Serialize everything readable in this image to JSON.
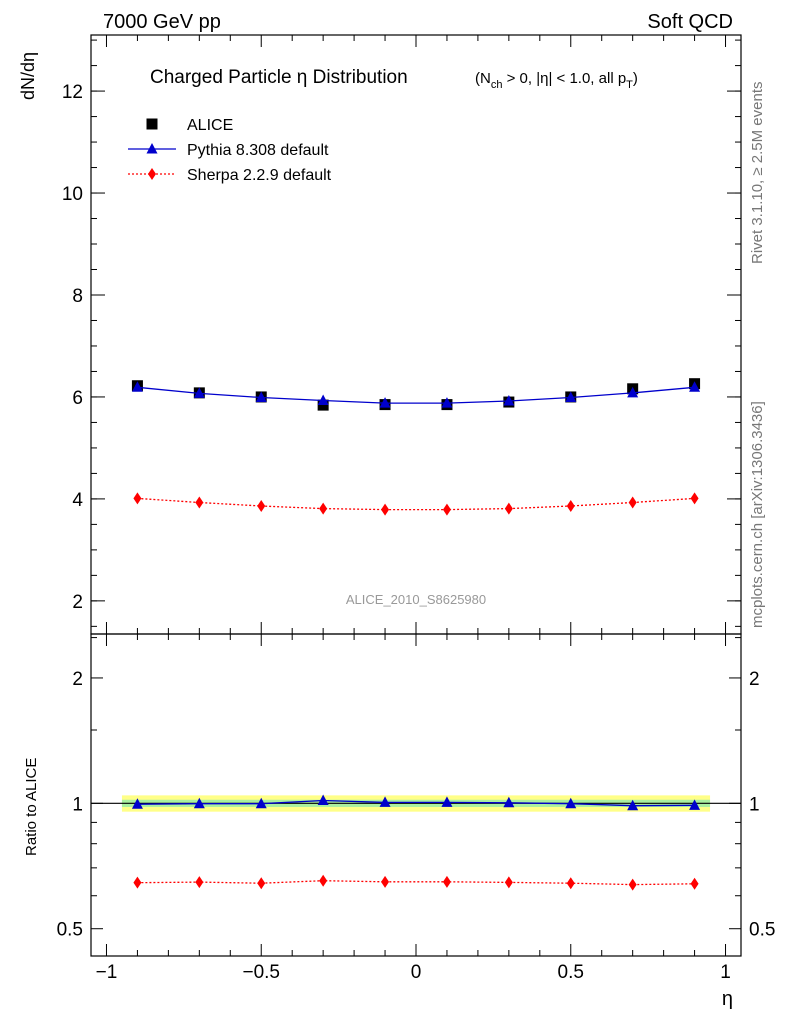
{
  "header": {
    "left": "7000 GeV pp",
    "right": "Soft QCD"
  },
  "side_labels": {
    "rivet": "Rivet 3.1.10, ≥ 2.5M events",
    "mcplots": "mcplots.cern.ch [arXiv:1306.3436]"
  },
  "chart_data": [
    {
      "type": "scatter",
      "title_main": "Charged Particle η Distribution",
      "title_sub": "(N_ch > 0, |η| < 1.0, all p_T)",
      "ylabel": "dN/dη",
      "xlabel": "",
      "watermark": "ALICE_2010_S8625980",
      "xlim": [
        -1.05,
        1.05
      ],
      "ylim": [
        1.35,
        13.1
      ],
      "grid": false,
      "legend_position": "top-left",
      "y_ticks": [
        2,
        4,
        6,
        8,
        10,
        12
      ],
      "x": [
        -0.9,
        -0.7,
        -0.5,
        -0.3,
        -0.1,
        0.1,
        0.3,
        0.5,
        0.7,
        0.9
      ],
      "series": [
        {
          "name": "ALICE",
          "marker": "square",
          "color": "#000000",
          "values": [
            6.22,
            6.08,
            6.0,
            5.84,
            5.85,
            5.85,
            5.9,
            6.0,
            6.16,
            6.26
          ]
        },
        {
          "name": "Pythia 8.308 default",
          "marker": "triangle",
          "color": "#0000cc",
          "line": "solid",
          "values": [
            6.19,
            6.07,
            5.99,
            5.93,
            5.88,
            5.88,
            5.92,
            5.99,
            6.08,
            6.19
          ]
        },
        {
          "name": "Sherpa 2.2.9 default",
          "marker": "diamond",
          "color": "#ff0000",
          "line": "dotted",
          "values": [
            4.01,
            3.93,
            3.86,
            3.81,
            3.79,
            3.79,
            3.81,
            3.86,
            3.93,
            4.01
          ]
        }
      ]
    },
    {
      "type": "line",
      "ylabel": "Ratio to ALICE",
      "xlabel": "η",
      "xlim": [
        -1.05,
        1.05
      ],
      "ylim": [
        0.43,
        2.55
      ],
      "log_y": true,
      "x_ticks": [
        -1,
        -0.5,
        0,
        0.5,
        1
      ],
      "x_tick_labels": [
        "−1",
        "−0.5",
        "0",
        "0.5",
        "1"
      ],
      "y_ticks": [
        0.5,
        1,
        2
      ],
      "y_tick_labels": [
        "0.5",
        "1",
        "2"
      ],
      "band_outer": [
        0.955,
        1.045
      ],
      "band_inner": [
        0.98,
        1.02
      ],
      "band_outer_color": "#ffff88",
      "band_inner_color": "#aaf0a0",
      "x": [
        -0.9,
        -0.7,
        -0.5,
        -0.3,
        -0.1,
        0.1,
        0.3,
        0.5,
        0.7,
        0.9
      ],
      "series": [
        {
          "name": "Pythia 8.308 default",
          "marker": "triangle",
          "color": "#0000cc",
          "line": "solid",
          "values": [
            0.995,
            0.998,
            0.998,
            1.016,
            1.005,
            1.005,
            1.003,
            0.998,
            0.987,
            0.989
          ]
        },
        {
          "name": "Sherpa 2.2.9 default",
          "marker": "diamond",
          "color": "#ff0000",
          "line": "dotted",
          "values": [
            0.645,
            0.647,
            0.643,
            0.652,
            0.648,
            0.648,
            0.646,
            0.643,
            0.638,
            0.641
          ]
        }
      ]
    }
  ]
}
